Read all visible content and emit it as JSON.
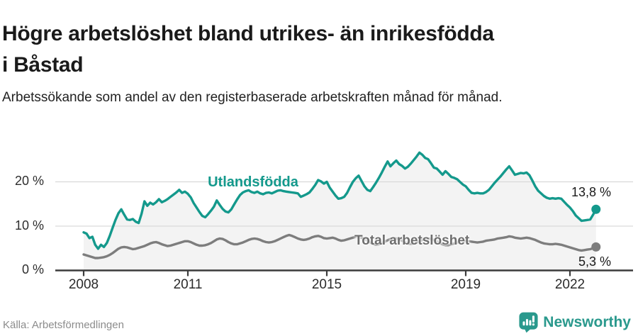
{
  "header": {
    "title": "Högre arbetslöshet bland utrikes- än inrikesfödda i Båstad",
    "subtitle": "Arbetssökande som andel av den registerbaserade arbetskraften månad för månad."
  },
  "footer": {
    "source": "Källa: Arbetsförmedlingen",
    "brand": "Newsworthy",
    "logo_icon": "newsworthy-speech-bubble-bar-chart-icon"
  },
  "colors": {
    "series_foreign_born": "#14998c",
    "series_total": "#7d7d7d",
    "area_fill": "#f3f3f3",
    "gridline": "#d9d9d9",
    "axis": "#3c3c3c",
    "brand_teal": "#2a998d",
    "title_text": "#1a1a1a",
    "source_text": "#8c8c8c"
  },
  "chart_data": {
    "type": "line",
    "title": "Högre arbetslöshet bland utrikes- än inrikesfödda i Båstad",
    "subtitle": "Arbetssökande som andel av den registerbaserade arbetskraften månad för månad.",
    "x_start_year": 2008,
    "x_step_months": 1,
    "x_end": "2022-10",
    "ylim": [
      0,
      27
    ],
    "grid": true,
    "legend_position": "inline-labels",
    "y_ticks": [
      {
        "value": 0,
        "label": "0 %"
      },
      {
        "value": 10,
        "label": "10 %"
      },
      {
        "value": 20,
        "label": "20 %"
      }
    ],
    "x_ticks": [
      {
        "year": 2008,
        "label": "2008"
      },
      {
        "year": 2011,
        "label": "2011"
      },
      {
        "year": 2015,
        "label": "2015"
      },
      {
        "year": 2019,
        "label": "2019"
      },
      {
        "year": 2022,
        "label": "2022"
      }
    ],
    "series": [
      {
        "name": "Utlandsfödda",
        "color": "#14998c",
        "end_label": "13,8 %",
        "end_value": 13.8,
        "values": [
          8.6,
          8.3,
          7.3,
          7.6,
          5.8,
          4.9,
          5.8,
          5.3,
          6.2,
          7.8,
          9.6,
          11.4,
          12.9,
          13.8,
          12.6,
          11.5,
          11.4,
          11.6,
          11.0,
          10.7,
          12.8,
          15.6,
          14.6,
          15.3,
          14.9,
          15.4,
          16.1,
          15.4,
          15.7,
          16.1,
          16.6,
          17.1,
          17.6,
          18.2,
          17.5,
          17.8,
          17.3,
          16.5,
          15.2,
          14.2,
          13.2,
          12.3,
          12.0,
          12.7,
          13.5,
          14.4,
          15.8,
          14.8,
          13.9,
          13.3,
          13.1,
          13.8,
          14.9,
          16.0,
          17.0,
          17.6,
          17.9,
          18.1,
          17.7,
          17.5,
          17.8,
          17.4,
          17.2,
          17.5,
          17.6,
          17.4,
          17.7,
          18.0,
          18.1,
          17.9,
          17.8,
          17.7,
          17.6,
          17.5,
          17.4,
          16.6,
          16.9,
          17.2,
          17.6,
          18.4,
          19.3,
          20.4,
          20.1,
          19.6,
          20.0,
          18.7,
          17.8,
          16.9,
          16.2,
          16.3,
          16.6,
          17.5,
          18.8,
          20.0,
          20.8,
          21.4,
          20.2,
          19.0,
          18.2,
          17.9,
          18.8,
          19.8,
          20.9,
          22.1,
          23.4,
          24.6,
          23.5,
          24.2,
          24.8,
          24.0,
          23.6,
          23.0,
          23.4,
          24.1,
          24.9,
          25.7,
          26.6,
          26.1,
          25.4,
          25.1,
          24.2,
          23.2,
          23.0,
          22.3,
          21.6,
          22.4,
          21.8,
          21.1,
          20.9,
          20.6,
          20.0,
          19.4,
          19.0,
          18.2,
          17.5,
          17.4,
          17.5,
          17.4,
          17.4,
          17.7,
          18.2,
          19.0,
          19.8,
          20.5,
          21.2,
          22.0,
          22.8,
          23.5,
          22.6,
          21.6,
          21.8,
          22.0,
          21.9,
          22.1,
          21.5,
          20.3,
          19.0,
          18.0,
          17.4,
          16.8,
          16.4,
          16.2,
          16.3,
          16.2,
          16.3,
          16.2,
          15.5,
          14.8,
          14.2,
          13.4,
          12.4,
          11.8,
          11.2,
          11.3,
          11.4,
          11.5,
          12.6,
          13.8
        ]
      },
      {
        "name": "Total arbetslöshet",
        "color": "#7d7d7d",
        "end_label": "5,3 %",
        "end_value": 5.3,
        "values": [
          3.6,
          3.4,
          3.2,
          3.0,
          2.8,
          2.8,
          2.9,
          3.0,
          3.2,
          3.5,
          3.9,
          4.4,
          4.9,
          5.2,
          5.3,
          5.2,
          5.0,
          4.8,
          4.9,
          5.1,
          5.3,
          5.5,
          5.8,
          6.1,
          6.3,
          6.4,
          6.2,
          5.9,
          5.7,
          5.5,
          5.6,
          5.8,
          6.0,
          6.2,
          6.4,
          6.6,
          6.6,
          6.4,
          6.1,
          5.8,
          5.6,
          5.6,
          5.7,
          5.9,
          6.2,
          6.6,
          7.0,
          7.2,
          7.1,
          6.8,
          6.4,
          6.1,
          5.9,
          5.9,
          6.1,
          6.3,
          6.6,
          6.9,
          7.1,
          7.2,
          7.1,
          6.9,
          6.6,
          6.4,
          6.3,
          6.4,
          6.6,
          6.9,
          7.2,
          7.5,
          7.8,
          8.0,
          7.8,
          7.5,
          7.2,
          7.0,
          6.9,
          7.0,
          7.2,
          7.5,
          7.7,
          7.8,
          7.6,
          7.3,
          7.2,
          7.3,
          7.4,
          7.2,
          6.9,
          6.7,
          6.8,
          7.0,
          7.2,
          7.4,
          7.6,
          7.5,
          7.4,
          7.1,
          6.7,
          6.3,
          6.0,
          5.8,
          5.9,
          6.2,
          6.5,
          6.8,
          7.1,
          7.3,
          7.2,
          7.0,
          6.7,
          6.4,
          6.1,
          6.0,
          6.1,
          6.3,
          6.6,
          6.9,
          7.1,
          7.2,
          7.1,
          6.9,
          6.6,
          6.2,
          5.9,
          5.7,
          5.7,
          5.9,
          6.1,
          6.3,
          6.5,
          6.6,
          6.7,
          6.6,
          6.5,
          6.4,
          6.3,
          6.4,
          6.5,
          6.7,
          6.8,
          6.9,
          7.0,
          7.2,
          7.3,
          7.4,
          7.5,
          7.7,
          7.6,
          7.4,
          7.3,
          7.2,
          7.3,
          7.4,
          7.3,
          7.1,
          6.9,
          6.6,
          6.3,
          6.1,
          6.0,
          5.9,
          5.9,
          6.0,
          5.9,
          5.8,
          5.6,
          5.4,
          5.2,
          5.0,
          4.8,
          4.6,
          4.5,
          4.6,
          4.7,
          4.8,
          5.0,
          5.3
        ]
      }
    ]
  }
}
